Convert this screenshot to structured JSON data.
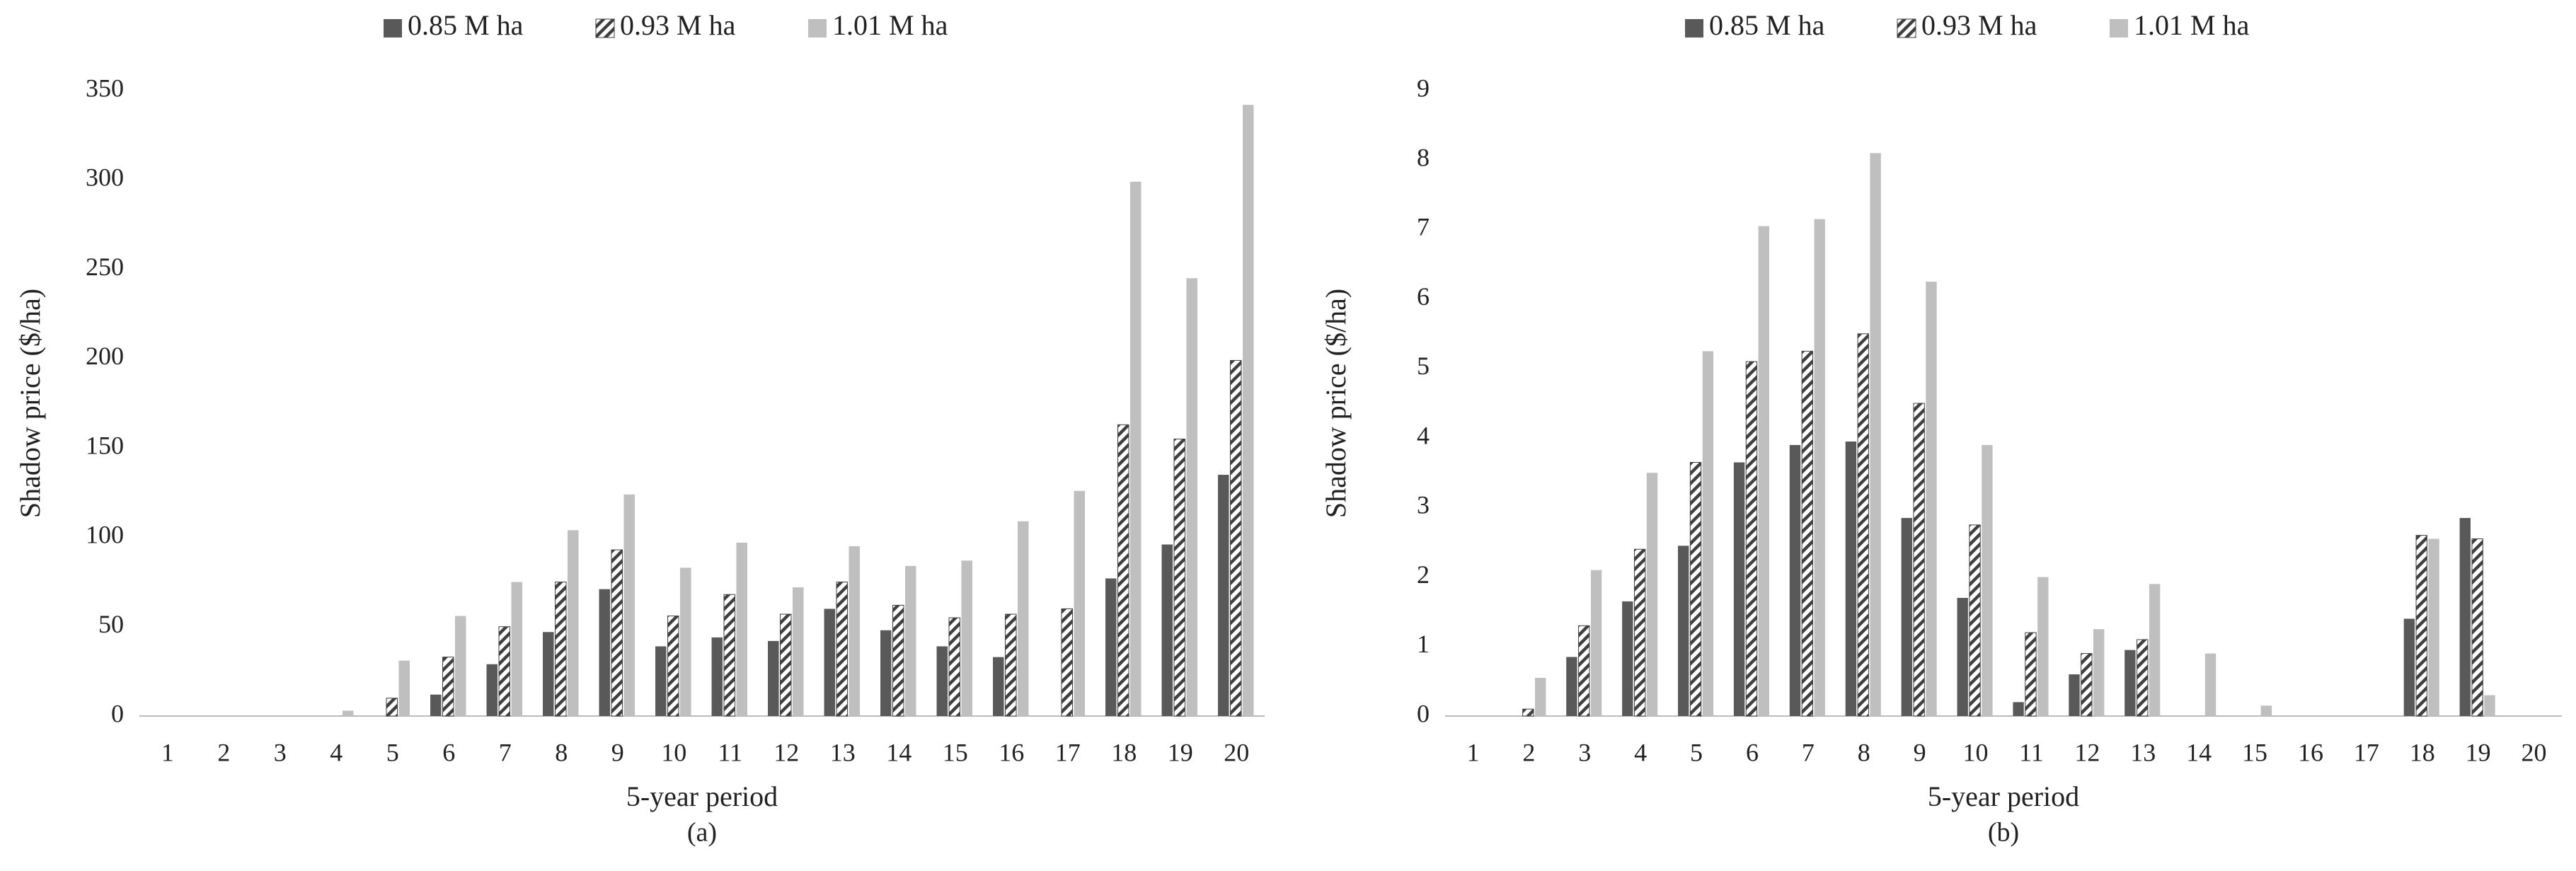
{
  "chart_data": [
    {
      "type": "bar",
      "caption": "(a)",
      "x_label": "5-year period",
      "y_label": "Shadow price ($/ha)",
      "categories": [
        "1",
        "2",
        "3",
        "4",
        "5",
        "6",
        "7",
        "8",
        "9",
        "10",
        "11",
        "12",
        "13",
        "14",
        "15",
        "16",
        "17",
        "18",
        "19",
        "20"
      ],
      "series": [
        {
          "name": "0.85 M ha",
          "color": "#595959",
          "hatch": false,
          "values": [
            0,
            0,
            0,
            0,
            0,
            12,
            29,
            47,
            71,
            39,
            44,
            42,
            60,
            48,
            39,
            33,
            0,
            77,
            96,
            135
          ]
        },
        {
          "name": "0.93 M ha",
          "color": "#404040",
          "hatch": true,
          "values": [
            0,
            0,
            0,
            0,
            10,
            33,
            50,
            75,
            93,
            56,
            68,
            57,
            75,
            62,
            55,
            57,
            60,
            163,
            155,
            199
          ]
        },
        {
          "name": "1.01 M ha",
          "color": "#bfbfbf",
          "hatch": false,
          "values": [
            0,
            0,
            0,
            3,
            31,
            56,
            75,
            104,
            124,
            83,
            97,
            72,
            95,
            84,
            87,
            109,
            126,
            299,
            245,
            342
          ]
        }
      ],
      "ylim": [
        0,
        350
      ],
      "yticks": [
        0,
        50,
        100,
        150,
        200,
        250,
        300,
        350
      ],
      "grid": false,
      "legend": "top"
    },
    {
      "type": "bar",
      "caption": "(b)",
      "x_label": "5-year period",
      "y_label": "Shadow price ($/ha)",
      "categories": [
        "1",
        "2",
        "3",
        "4",
        "5",
        "6",
        "7",
        "8",
        "9",
        "10",
        "11",
        "12",
        "13",
        "14",
        "15",
        "16",
        "17",
        "18",
        "19",
        "20"
      ],
      "series": [
        {
          "name": "0.85 M ha",
          "color": "#595959",
          "hatch": false,
          "values": [
            0,
            0,
            0.85,
            1.65,
            2.45,
            3.65,
            3.9,
            3.95,
            2.85,
            1.7,
            0.2,
            0.6,
            0.95,
            0,
            0,
            0,
            0,
            1.4,
            2.85,
            0
          ]
        },
        {
          "name": "0.93 M ha",
          "color": "#404040",
          "hatch": true,
          "values": [
            0,
            0.1,
            1.3,
            2.4,
            3.65,
            5.1,
            5.25,
            5.5,
            4.5,
            2.75,
            1.2,
            0.9,
            1.1,
            0,
            0,
            0,
            0,
            2.6,
            2.55,
            0
          ]
        },
        {
          "name": "1.01 M ha",
          "color": "#bfbfbf",
          "hatch": false,
          "values": [
            0,
            0.55,
            2.1,
            3.5,
            5.25,
            7.05,
            7.15,
            8.1,
            6.25,
            3.9,
            2.0,
            1.25,
            1.9,
            0.9,
            0.15,
            0,
            0,
            2.55,
            0.3,
            0
          ]
        }
      ],
      "ylim": [
        0,
        9
      ],
      "yticks": [
        0,
        1,
        2,
        3,
        4,
        5,
        6,
        7,
        8,
        9
      ],
      "grid": false,
      "legend": "top"
    }
  ]
}
